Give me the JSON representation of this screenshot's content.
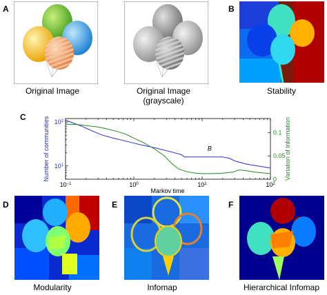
{
  "panels": {
    "A": {
      "letter": "A",
      "captions": [
        "Original Image",
        "Original Image",
        "(grayscale)"
      ]
    },
    "B": {
      "letter": "B",
      "caption": "Stability"
    },
    "C": {
      "letter": "C"
    },
    "D": {
      "letter": "D",
      "caption": "Modularity"
    },
    "E": {
      "letter": "E",
      "caption": "Infomap"
    },
    "F": {
      "letter": "F",
      "caption": "Hierarchical Infomap"
    }
  },
  "colors": {
    "blue_series": "#2b2bd6",
    "green_series": "#1f8a1f",
    "jet_dark_blue": "#00008f",
    "jet_blue": "#0050ff",
    "jet_cyan": "#00d8ff",
    "jet_green": "#6aff90",
    "jet_yellow": "#ffe000",
    "jet_orange": "#ff7a00",
    "jet_red": "#b00000"
  },
  "chart_data": {
    "type": "line",
    "xlabel": "Markov time",
    "ylabel_left": "Number of communities",
    "ylabel_right": "Variation of information",
    "x_scale": "log",
    "xlim": [
      0.1,
      100
    ],
    "x_ticks": [
      {
        "base": "10",
        "exp": "−1",
        "value": 0.1
      },
      {
        "base": "10",
        "exp": "0",
        "value": 1
      },
      {
        "base": "10",
        "exp": "1",
        "value": 10
      },
      {
        "base": "10",
        "exp": "2",
        "value": 100
      }
    ],
    "y_left_scale": "log",
    "y_left_lim": [
      5,
      120
    ],
    "y_left_ticks": [
      {
        "base": "10",
        "exp": "1",
        "value": 10
      },
      {
        "base": "10",
        "exp": "2",
        "value": 100
      }
    ],
    "y_right_lim": [
      0,
      0.13
    ],
    "y_right_ticks": [
      {
        "label": "0",
        "value": 0
      },
      {
        "label": "0.05",
        "value": 0.05
      },
      {
        "label": "0.1",
        "value": 0.1
      }
    ],
    "annotation": {
      "text": "B",
      "x": 12,
      "y": 18
    },
    "series": [
      {
        "axis": "left",
        "color": "#2b2bd6",
        "points": [
          [
            0.1,
            110
          ],
          [
            0.13,
            95
          ],
          [
            0.18,
            78
          ],
          [
            0.25,
            62
          ],
          [
            0.35,
            50
          ],
          [
            0.5,
            43
          ],
          [
            0.7,
            38
          ],
          [
            1.0,
            33
          ],
          [
            1.3,
            30
          ],
          [
            1.8,
            27
          ],
          [
            2.5,
            24
          ],
          [
            3.5,
            21
          ],
          [
            5,
            18
          ],
          [
            5.5,
            16
          ],
          [
            10,
            16
          ],
          [
            15,
            16
          ],
          [
            20,
            16
          ],
          [
            25,
            15
          ],
          [
            30,
            13
          ],
          [
            45,
            11
          ],
          [
            65,
            10
          ],
          [
            100,
            9
          ]
        ]
      },
      {
        "axis": "right",
        "color": "#1f8a1f",
        "points": [
          [
            0.1,
            0.118
          ],
          [
            0.15,
            0.117
          ],
          [
            0.2,
            0.115
          ],
          [
            0.3,
            0.112
          ],
          [
            0.4,
            0.108
          ],
          [
            0.55,
            0.103
          ],
          [
            0.75,
            0.097
          ],
          [
            1.0,
            0.088
          ],
          [
            1.4,
            0.078
          ],
          [
            2.0,
            0.065
          ],
          [
            2.8,
            0.05
          ],
          [
            3.5,
            0.035
          ],
          [
            4.5,
            0.022
          ],
          [
            6,
            0.016
          ],
          [
            8,
            0.013
          ],
          [
            10,
            0.012
          ],
          [
            14,
            0.012
          ],
          [
            20,
            0.013
          ],
          [
            28,
            0.015
          ],
          [
            35,
            0.02
          ],
          [
            45,
            0.018
          ],
          [
            60,
            0.015
          ],
          [
            100,
            0.012
          ]
        ]
      }
    ]
  }
}
